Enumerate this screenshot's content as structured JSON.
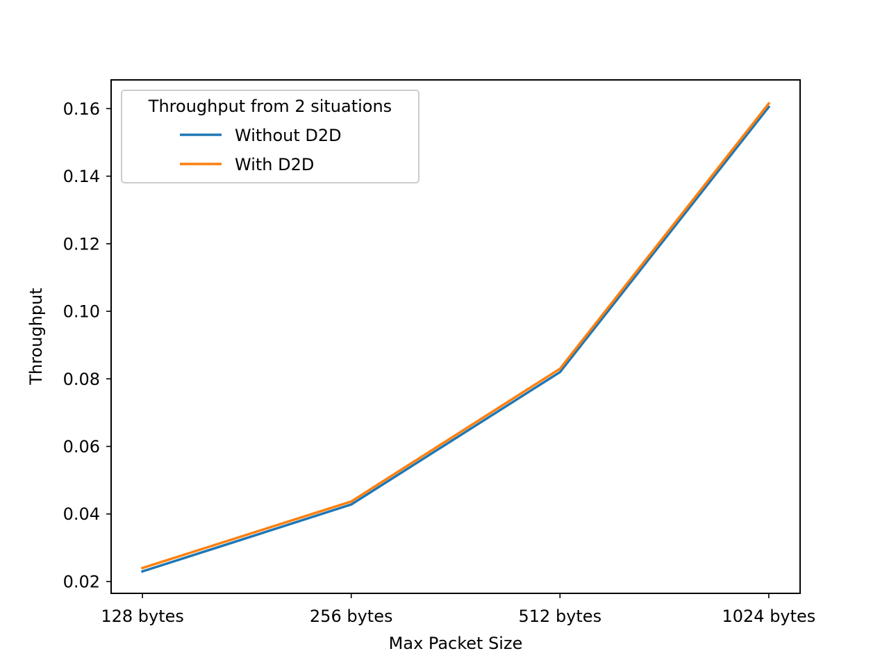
{
  "chart_data": {
    "type": "line",
    "categories": [
      "128 bytes",
      "256 bytes",
      "512 bytes",
      "1024 bytes"
    ],
    "series": [
      {
        "name": "Without D2D",
        "color": "#1f77b4",
        "values": [
          0.023,
          0.0428,
          0.082,
          0.1605
        ]
      },
      {
        "name": "With D2D",
        "color": "#ff7f0e",
        "values": [
          0.024,
          0.0437,
          0.083,
          0.1615
        ]
      }
    ],
    "title": "",
    "xlabel": "Max Packet Size",
    "ylabel": "Throughput",
    "ylim": [
      0.0165,
      0.1685
    ],
    "yticks": [
      "0.02",
      "0.04",
      "0.06",
      "0.08",
      "0.10",
      "0.12",
      "0.14",
      "0.16"
    ],
    "legend": {
      "title": "Throughput from 2 situations",
      "placement": "top-left"
    },
    "grid": false
  }
}
